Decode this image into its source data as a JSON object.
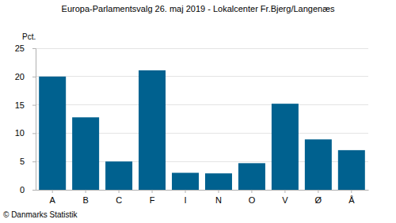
{
  "chart_data": {
    "type": "bar",
    "title": "Europa-Parlamentsvalg 26. maj 2019 - Lokalcenter Fr.Bjerg/Langenæs",
    "y_label": "Pct.",
    "source": "© Danmarks Statistik",
    "categories": [
      "A",
      "B",
      "C",
      "F",
      "I",
      "N",
      "O",
      "V",
      "Ø",
      "Å"
    ],
    "values": [
      20.0,
      12.8,
      5.0,
      21.1,
      3.0,
      2.9,
      4.7,
      15.2,
      8.9,
      7.0
    ],
    "color": "#00618f",
    "ylim": [
      0,
      25
    ],
    "yticks": [
      0,
      5,
      10,
      15,
      20,
      25
    ],
    "grid": true
  }
}
